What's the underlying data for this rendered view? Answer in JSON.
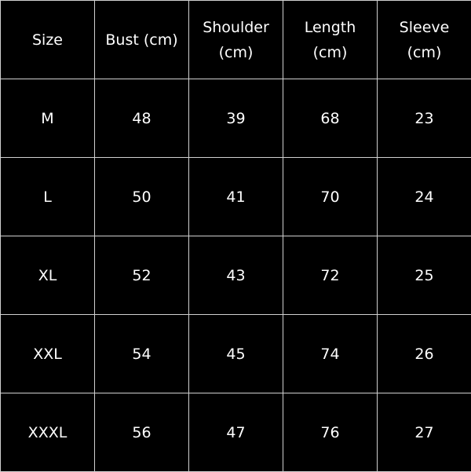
{
  "table": {
    "headers": [
      [
        "Size"
      ],
      [
        "Bust (cm)"
      ],
      [
        "Shoulder",
        "(cm)"
      ],
      [
        "Length",
        "(cm)"
      ],
      [
        "Sleeve",
        "(cm)"
      ]
    ],
    "rows": [
      [
        "M",
        "48",
        "39",
        "68",
        "23"
      ],
      [
        "L",
        "50",
        "41",
        "70",
        "24"
      ],
      [
        "XL",
        "52",
        "43",
        "72",
        "25"
      ],
      [
        "XXL",
        "54",
        "45",
        "74",
        "26"
      ],
      [
        "XXXL",
        "56",
        "47",
        "76",
        "27"
      ]
    ]
  },
  "colors": {
    "background": "#000000",
    "text": "#ffffff",
    "grid": "#d0d0d0"
  }
}
